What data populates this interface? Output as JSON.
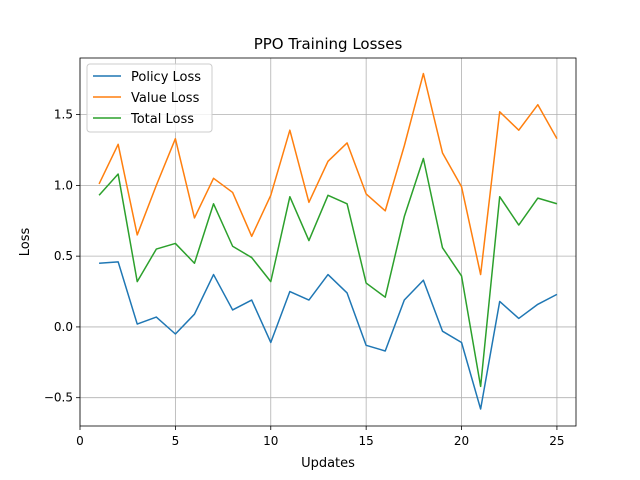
{
  "chart_data": {
    "type": "line",
    "title": "PPO Training Losses",
    "xlabel": "Updates",
    "ylabel": "Loss",
    "xlim": [
      0,
      26
    ],
    "ylim": [
      -0.7,
      1.9
    ],
    "xticks": [
      0,
      5,
      10,
      15,
      20,
      25
    ],
    "xtick_labels": [
      "0",
      "5",
      "10",
      "15",
      "20",
      "25"
    ],
    "yticks": [
      -0.5,
      0.0,
      0.5,
      1.0,
      1.5
    ],
    "ytick_labels": [
      "−0.5",
      "0.0",
      "0.5",
      "1.0",
      "1.5"
    ],
    "grid": true,
    "legend_position": "top-left",
    "x": [
      1,
      2,
      3,
      4,
      5,
      6,
      7,
      8,
      9,
      10,
      11,
      12,
      13,
      14,
      15,
      16,
      17,
      18,
      19,
      20,
      21,
      22,
      23,
      24,
      25
    ],
    "series": [
      {
        "name": "Policy Loss",
        "color": "#1f77b4",
        "values": [
          0.45,
          0.46,
          0.02,
          0.07,
          -0.05,
          0.09,
          0.37,
          0.12,
          0.19,
          -0.11,
          0.25,
          0.19,
          0.37,
          0.24,
          -0.13,
          -0.17,
          0.19,
          0.33,
          -0.03,
          -0.11,
          -0.58,
          0.18,
          0.06,
          0.16,
          0.23
        ]
      },
      {
        "name": "Value Loss",
        "color": "#ff7f0e",
        "values": [
          1.01,
          1.29,
          0.65,
          1.0,
          1.33,
          0.77,
          1.05,
          0.95,
          0.64,
          0.93,
          1.39,
          0.88,
          1.17,
          1.3,
          0.94,
          0.82,
          1.28,
          1.79,
          1.23,
          0.99,
          0.37,
          1.52,
          1.39,
          1.57,
          1.33
        ]
      },
      {
        "name": "Total Loss",
        "color": "#2ca02c",
        "values": [
          0.93,
          1.08,
          0.32,
          0.55,
          0.59,
          0.45,
          0.87,
          0.57,
          0.49,
          0.32,
          0.92,
          0.61,
          0.93,
          0.87,
          0.31,
          0.21,
          0.78,
          1.19,
          0.56,
          0.36,
          -0.42,
          0.92,
          0.72,
          0.91,
          0.87
        ]
      }
    ]
  }
}
